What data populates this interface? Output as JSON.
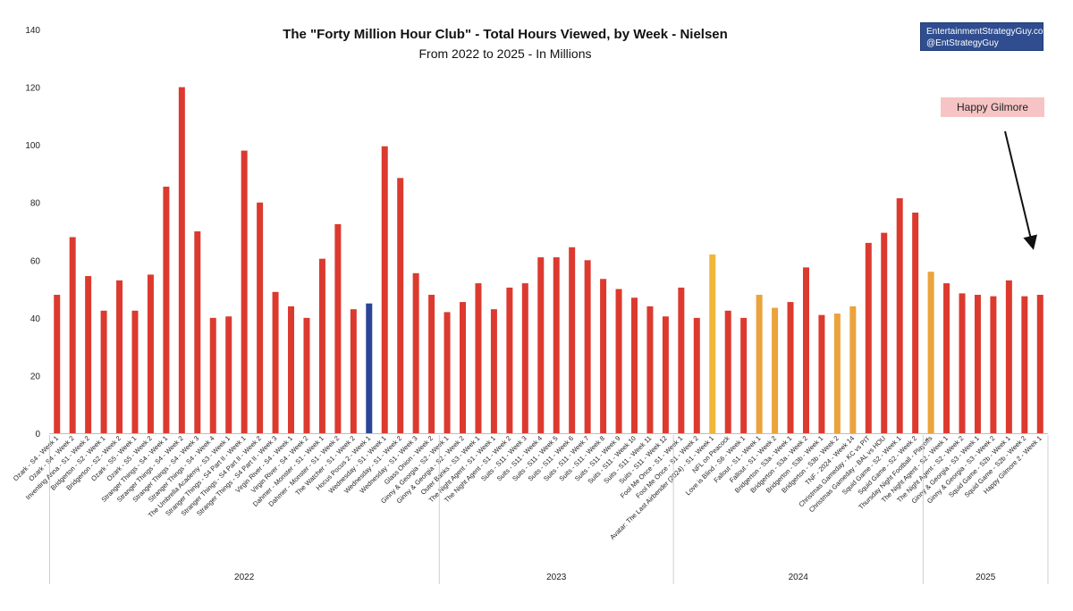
{
  "colors": {
    "default_bar": "#dc3a2f",
    "highlight_blue": "#2b4596",
    "highlight_yellow": "#f0b63a",
    "highlight_orange": "#eba33b",
    "credit_bg": "#2f4d8f",
    "note_bg": "#f6c4c4"
  },
  "chart_data": {
    "type": "bar",
    "title": "The \"Forty Million Hour Club\" - Total Hours Viewed, by Week - Nielsen",
    "subtitle": "From 2022 to 2025 - In Millions",
    "ylim": [
      0,
      140
    ],
    "yticks": [
      0,
      20,
      40,
      60,
      80,
      100,
      120,
      140
    ],
    "grid": false,
    "year_groups": [
      {
        "label": "2022",
        "count": 25
      },
      {
        "label": "2023",
        "count": 15
      },
      {
        "label": "2024",
        "count": 16
      },
      {
        "label": "2025",
        "count": 8
      }
    ],
    "categories": [
      "Ozark - S4 - Week 1",
      "Ozark - S4 - Week 2",
      "Inventing Anna - S1 - Week 2",
      "Bridgerton - S2 - Week 1",
      "Bridgerton - S2 - Week 2",
      "Ozark - S5 - Week 1",
      "Ozark - S5 - Week 2",
      "Stranger Things - S4 - Week 1",
      "Stranger Things - S4 - Week 2",
      "Stranger Things - S4 - Week 3",
      "Stranger Things - S4 - Week 4",
      "The Umbrella Academy - S3 - Week 1",
      "Stranger Things - S4 Part II - Week 1",
      "Stranger Things - S4 Part II - Week 2",
      "Stranger Things - S4 Part II - Week 3",
      "Virgin River - S4 - Week 1",
      "Virgin River - S4 - Week 2",
      "Dahmer - Monster - S1 - Week 1",
      "Dahmer - Monster - S1 - Week 2",
      "The Watcher - S1 - Week 2",
      "Hocus Pocus 2 - Week 1",
      "Wednesday - S1 - Week 1",
      "Wednesday - S1 - Week 2",
      "Wednesday - S1 - Week 3",
      "Glass Onion - Week 2",
      "Ginny & Georgia - S2 - Week 1",
      "Ginny & Georgia - S2 - Week 2",
      "Outer Banks - S3 - Week 1",
      "The Night Agent - S1 - Week 1",
      "The Night Agent - S1 - Week 2",
      "Suits - S11 - Week 3",
      "Suits - S11 - Week 4",
      "Suits - S11 - Week 5",
      "Suits - S11 - Week 6",
      "Suits - S11 - Week 7",
      "Suits - S11 - Week 8",
      "Suits - S11 - Week 9",
      "Suits - S11 - Week 10",
      "Suits - S11 - Week 11",
      "Suits - S11 - Week 12",
      "Fool Me Once - S1 - Week 1",
      "Fool Me Once - S1 - Week 2",
      "Avatar: The Last Airbender (2024) - S1 - Week 1",
      "NFL on Peacock",
      "Love is Blind - S6 - Week 1",
      "Fallout - S1 - Week 1",
      "Fallout - S1 - Week 2",
      "Bridgerton - S3a - Week 1",
      "Bridgerton - S3a - Week 2",
      "Bridgerton - S3b - Week 1",
      "Bridgerton - S3b - Week 2",
      "TNF - 2024 - Week 14",
      "Christmas Gameday - KC vs PIT",
      "Christmas Gameday - BAL vs HOU",
      "Squid Game - S2 - Week 1",
      "Squid Game - S2 - Week 2",
      "Thursday Night Football - Playoffs",
      "The Night Agent - S2 - Week 1",
      "The Night Agent - S2 - Week 2",
      "Ginny & Georgia - S3 - Week 1",
      "Ginny & Georgia - S3 - Week 2",
      "Squid Game - S2b - Week 1",
      "Squid Game - S2b - Week 2",
      "Happy Gilmore 2 - Week 1"
    ],
    "values": [
      48,
      68,
      54.5,
      42.5,
      53,
      42.5,
      55,
      85.5,
      120,
      70,
      40,
      40.5,
      98,
      80,
      49,
      44,
      40,
      60.5,
      72.5,
      43,
      45,
      99.5,
      88.5,
      55.5,
      48,
      42,
      45.5,
      52,
      43,
      50.5,
      52,
      61,
      61,
      64.5,
      60,
      53.5,
      50,
      47,
      44,
      40.5,
      50.5,
      40,
      62,
      42.5,
      40,
      48,
      43.5,
      45.5,
      57.5,
      41,
      41.5,
      44,
      66,
      69.5,
      81.5,
      76.5,
      56,
      52,
      48.5,
      48,
      47.5,
      53,
      47.5,
      48
    ],
    "highlights": {
      "20": "highlight_blue",
      "42": "highlight_yellow",
      "45": "highlight_orange",
      "46": "highlight_orange",
      "50": "highlight_orange",
      "51": "highlight_orange",
      "56": "highlight_orange"
    }
  },
  "credit": {
    "line1": "EntertainmentStrategyGuy.com",
    "line2": "@EntStrategyGuy"
  },
  "annotation": {
    "label": "Happy Gilmore"
  }
}
